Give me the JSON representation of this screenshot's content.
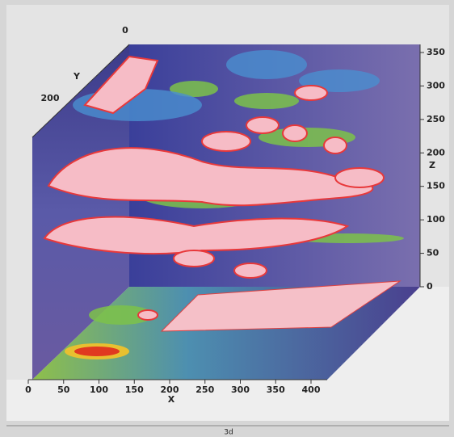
{
  "axes": {
    "x": {
      "label": "X",
      "ticks": [
        "0",
        "50",
        "100",
        "150",
        "200",
        "250",
        "300",
        "350",
        "400"
      ]
    },
    "y": {
      "label": "Y",
      "ticks": [
        "0",
        "200"
      ]
    },
    "z": {
      "label": "Z",
      "ticks": [
        "0",
        "50",
        "100",
        "150",
        "200",
        "250",
        "300",
        "350"
      ]
    }
  },
  "caption": "3d"
}
